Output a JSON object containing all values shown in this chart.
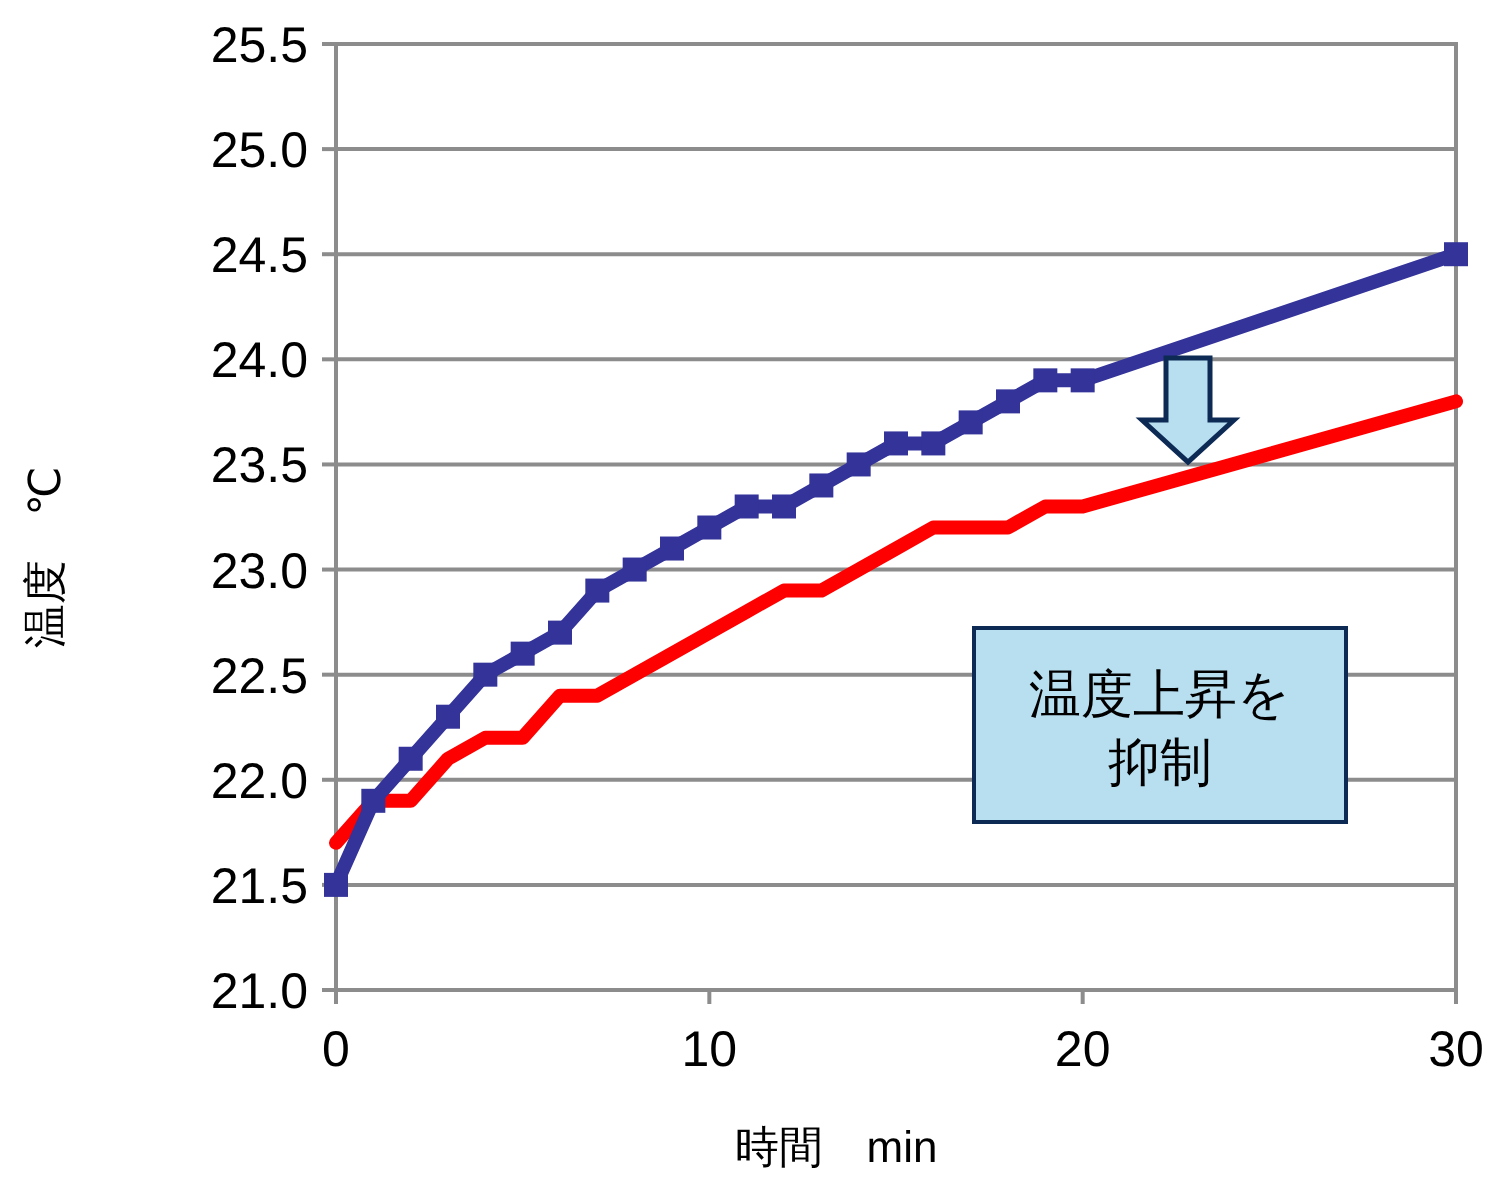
{
  "chart_data": {
    "type": "line",
    "xlabel": "時間　min",
    "ylabel": "温度　℃",
    "x": [
      0,
      1,
      2,
      3,
      4,
      5,
      6,
      7,
      8,
      9,
      10,
      11,
      12,
      13,
      14,
      15,
      16,
      17,
      18,
      19,
      20,
      30
    ],
    "series": [
      {
        "color": "#333399",
        "marker": "square",
        "values": [
          21.5,
          21.9,
          22.1,
          22.3,
          22.5,
          22.6,
          22.7,
          22.9,
          23.0,
          23.1,
          23.2,
          23.3,
          23.3,
          23.4,
          23.5,
          23.6,
          23.6,
          23.7,
          23.8,
          23.9,
          23.9,
          24.5
        ]
      },
      {
        "color": "#ff0000",
        "marker": "none",
        "values": [
          21.7,
          21.9,
          21.9,
          22.1,
          22.2,
          22.2,
          22.4,
          22.4,
          22.5,
          22.6,
          22.7,
          22.8,
          22.9,
          22.9,
          23.0,
          23.1,
          23.2,
          23.2,
          23.2,
          23.3,
          23.3,
          23.8
        ]
      }
    ],
    "xlim": [
      0,
      30
    ],
    "xticks": [
      0,
      10,
      20,
      30
    ],
    "ylim": [
      21.0,
      25.5
    ],
    "yticks": [
      {
        "value": 21.0,
        "label": "21.0"
      },
      {
        "value": 21.5,
        "label": "21.5"
      },
      {
        "value": 22.0,
        "label": "22.0"
      },
      {
        "value": 22.5,
        "label": "22.5"
      },
      {
        "value": 23.0,
        "label": "23.0"
      },
      {
        "value": 23.5,
        "label": "23.5"
      },
      {
        "value": 24.0,
        "label": "24.0"
      },
      {
        "value": 24.5,
        "label": "24.5"
      },
      {
        "value": 25.0,
        "label": "25.0"
      },
      {
        "value": 25.5,
        "label": "25.5"
      }
    ],
    "grid": "y",
    "line_style": "solid",
    "annotations": [
      "温度上昇を抑制"
    ]
  }
}
